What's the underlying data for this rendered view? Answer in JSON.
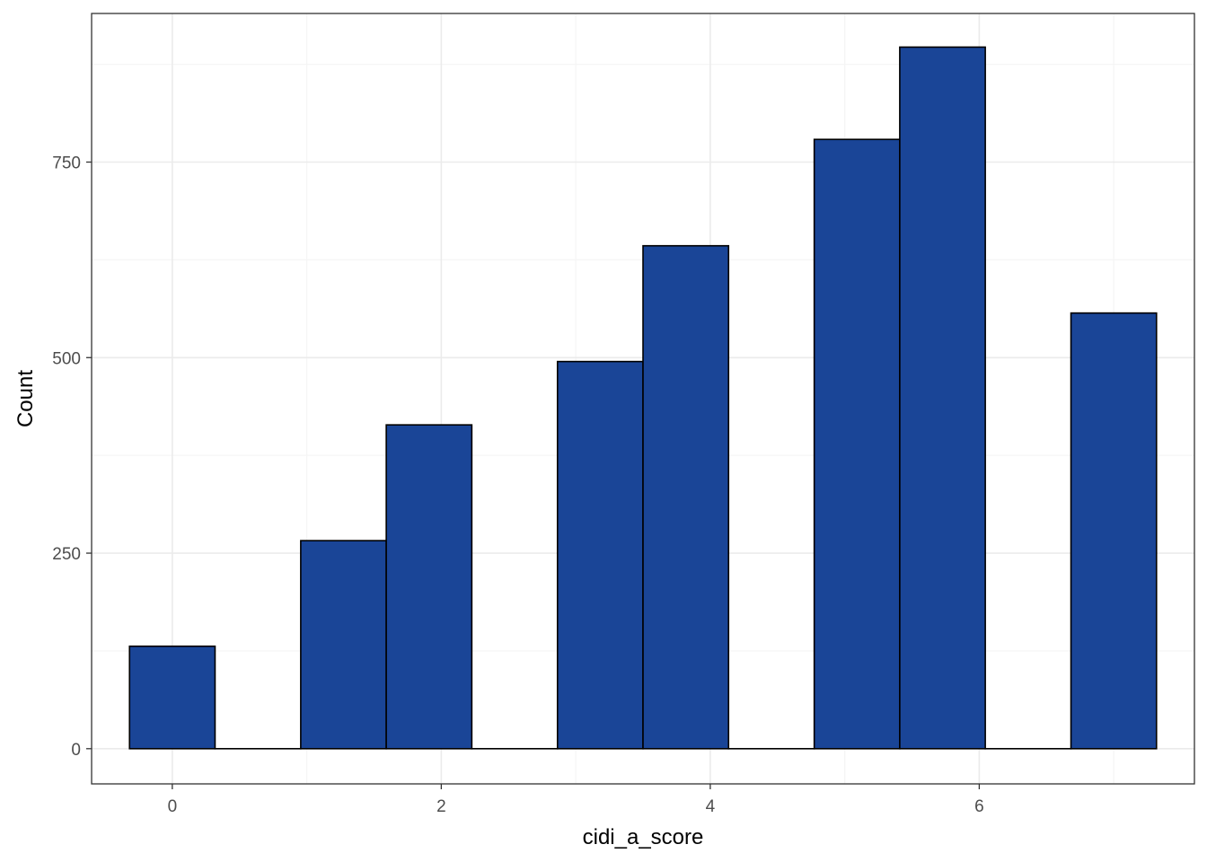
{
  "chart_data": {
    "type": "bar",
    "subtype": "histogram",
    "xlabel": "cidi_a_score",
    "ylabel": "Count",
    "xlim": [
      -0.6,
      7.6
    ],
    "ylim": [
      -45,
      940
    ],
    "x_ticks": [
      0,
      2,
      4,
      6
    ],
    "y_ticks": [
      0,
      250,
      500,
      750
    ],
    "x_minor": [
      1,
      3,
      5,
      7
    ],
    "y_minor": [
      125,
      375,
      625,
      875
    ],
    "bin_width": 0.636,
    "bins": [
      {
        "x_start": -0.318,
        "x_end": 0.318,
        "count": 131
      },
      {
        "x_start": 0.318,
        "x_end": 0.955,
        "count": 0
      },
      {
        "x_start": 0.955,
        "x_end": 1.591,
        "count": 266
      },
      {
        "x_start": 1.591,
        "x_end": 2.227,
        "count": 414
      },
      {
        "x_start": 2.227,
        "x_end": 2.864,
        "count": 0
      },
      {
        "x_start": 2.864,
        "x_end": 3.5,
        "count": 495
      },
      {
        "x_start": 3.5,
        "x_end": 4.136,
        "count": 643
      },
      {
        "x_start": 4.136,
        "x_end": 4.773,
        "count": 0
      },
      {
        "x_start": 4.773,
        "x_end": 5.409,
        "count": 779
      },
      {
        "x_start": 5.409,
        "x_end": 6.045,
        "count": 897
      },
      {
        "x_start": 6.045,
        "x_end": 6.682,
        "count": 0
      },
      {
        "x_start": 6.682,
        "x_end": 7.318,
        "count": 557
      }
    ],
    "grid": true,
    "legend": "none",
    "colors": {
      "bar_fill": "#1a4597",
      "bar_stroke": "#000000",
      "grid_major": "#ebebeb",
      "grid_minor": "#f5f5f5",
      "panel_border": "#333333",
      "axis_line": "#000000"
    }
  }
}
